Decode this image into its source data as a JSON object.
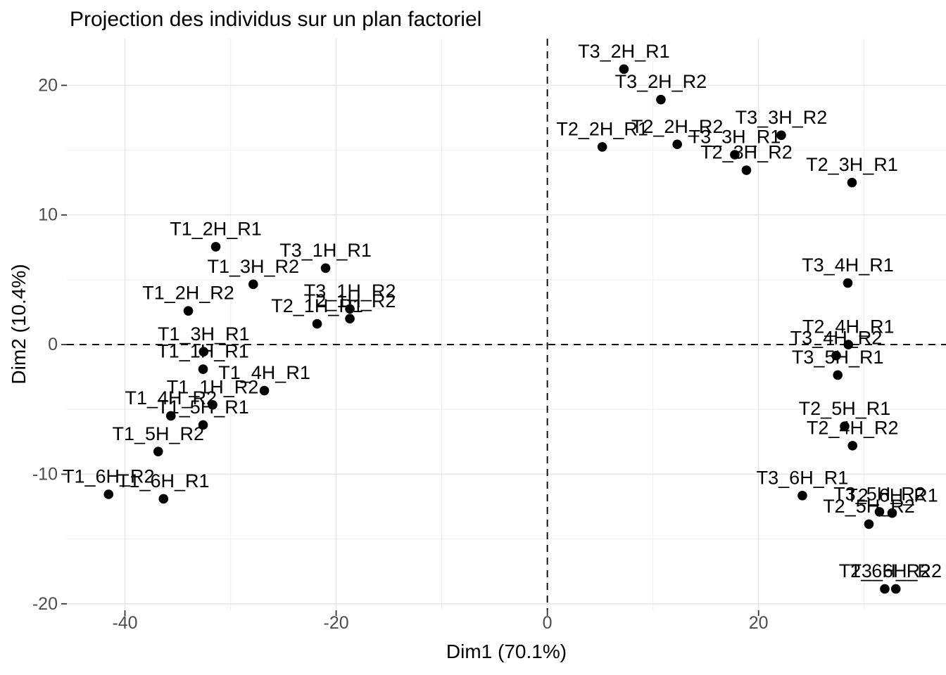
{
  "chart_data": {
    "type": "scatter",
    "title": "Projection des individus sur un plan factoriel",
    "xlabel": "Dim1 (70.1%)",
    "ylabel": "Dim2 (10.4%)",
    "xlim": [
      -45.5,
      37.75
    ],
    "ylim": [
      -20.5,
      23.6
    ],
    "x_ticks_major": [
      -40,
      -20,
      0,
      20
    ],
    "x_ticks_minor": [
      -30,
      -10,
      10,
      30
    ],
    "y_ticks_major": [
      20,
      10,
      0,
      -10,
      -20
    ],
    "y_ticks_minor": [
      15,
      5,
      -5,
      -15
    ],
    "grid": true,
    "legend": "none",
    "reference_lines": {
      "vline_x": 0,
      "hline_y": 0,
      "style": "dashed"
    },
    "point_color": "#000000",
    "gridline_major_color": "#e7e7e7",
    "gridline_minor_color": "#f1f1f1",
    "tick_color": "#333333",
    "tick_label_color": "#4d4d4d",
    "points": [
      {
        "label": "T1_1H_R1",
        "x": -32.6,
        "y": -1.9
      },
      {
        "label": "T1_1H_R2",
        "x": -31.7,
        "y": -4.65
      },
      {
        "label": "T1_2H_R1",
        "x": -31.4,
        "y": 7.55
      },
      {
        "label": "T1_2H_R2",
        "x": -34.0,
        "y": 2.6
      },
      {
        "label": "T1_3H_R1",
        "x": -32.55,
        "y": -0.55
      },
      {
        "label": "T1_3H_R2",
        "x": -27.85,
        "y": 4.65
      },
      {
        "label": "T1_4H_R1",
        "x": -26.8,
        "y": -3.55
      },
      {
        "label": "T1_4H_R2",
        "x": -35.65,
        "y": -5.5
      },
      {
        "label": "T1_5H_R1",
        "x": -32.6,
        "y": -6.2
      },
      {
        "label": "T1_5H_R2",
        "x": -36.85,
        "y": -8.25
      },
      {
        "label": "T1_6H_R1",
        "x": -36.35,
        "y": -11.9
      },
      {
        "label": "T1_6H_R2",
        "x": -41.55,
        "y": -11.55
      },
      {
        "label": "T2_1H_R1",
        "x": -21.8,
        "y": 1.6
      },
      {
        "label": "T2_1H_R2",
        "x": -18.7,
        "y": 2.0
      },
      {
        "label": "T2_2H_R1",
        "x": 5.2,
        "y": 15.25
      },
      {
        "label": "T2_2H_R2",
        "x": 12.3,
        "y": 15.45
      },
      {
        "label": "T2_3H_R1",
        "x": 28.85,
        "y": 12.5
      },
      {
        "label": "T2_3H_R2",
        "x": 18.85,
        "y": 13.45
      },
      {
        "label": "T2_4H_R1",
        "x": 28.5,
        "y": 0.0
      },
      {
        "label": "T2_4H_R2",
        "x": 28.9,
        "y": -7.8
      },
      {
        "label": "T2_5H_R1",
        "x": 28.15,
        "y": -6.3
      },
      {
        "label": "T2_5H_R2",
        "x": 30.45,
        "y": -13.85
      },
      {
        "label": "T2_6H_R1",
        "x": 32.65,
        "y": -13.0
      },
      {
        "label": "T2_6H_R2",
        "x": 31.95,
        "y": -18.85
      },
      {
        "label": "T3_1H_R1",
        "x": -21.0,
        "y": 5.9
      },
      {
        "label": "T3_1H_R2",
        "x": -18.7,
        "y": 2.75
      },
      {
        "label": "T3_2H_R1",
        "x": 7.25,
        "y": 21.25
      },
      {
        "label": "T3_2H_R2",
        "x": 10.75,
        "y": 18.9
      },
      {
        "label": "T3_3H_R1",
        "x": 17.75,
        "y": 14.65
      },
      {
        "label": "T3_3H_R2",
        "x": 22.15,
        "y": 16.15
      },
      {
        "label": "T3_4H_R1",
        "x": 28.45,
        "y": 4.75
      },
      {
        "label": "T3_4H_R2",
        "x": 27.35,
        "y": -0.85
      },
      {
        "label": "T3_5H_R1",
        "x": 27.5,
        "y": -2.35
      },
      {
        "label": "T3_5H_R2",
        "x": 31.45,
        "y": -12.9
      },
      {
        "label": "T3_6H_R1",
        "x": 24.15,
        "y": -11.65
      },
      {
        "label": "T3_6H_R2",
        "x": 33.0,
        "y": -18.85
      }
    ]
  }
}
